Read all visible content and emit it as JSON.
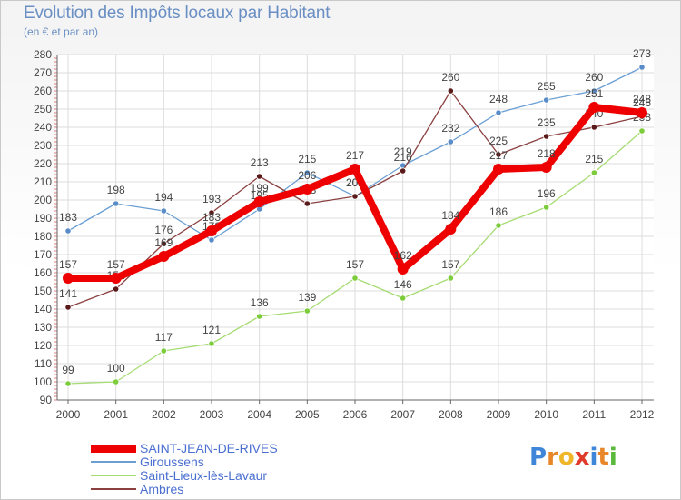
{
  "chart_data": {
    "type": "line",
    "title": "Evolution des Impôts locaux par Habitant",
    "subtitle": "(en € et par an)",
    "xlabel": "",
    "ylabel": "",
    "ylim": [
      90,
      280
    ],
    "ytick_step": 10,
    "categories": [
      "2000",
      "2001",
      "2002",
      "2003",
      "2004",
      "2005",
      "2006",
      "2007",
      "2008",
      "2009",
      "2010",
      "2011",
      "2012"
    ],
    "series": [
      {
        "name": "Giroussens",
        "color": "#6a9fd4",
        "marker": "#5a8cc8",
        "width": 1.3,
        "values": [
          183,
          198,
          194,
          178,
          195,
          215,
          202,
          219,
          232,
          248,
          255,
          260,
          273
        ]
      },
      {
        "name": "Saint-Lieux-lès-Lavaur",
        "color": "#a6dc72",
        "marker": "#7ccc3c",
        "width": 1.3,
        "values": [
          99,
          100,
          117,
          121,
          136,
          139,
          157,
          146,
          157,
          186,
          196,
          215,
          238
        ]
      },
      {
        "name": "Ambres",
        "color": "#8b4040",
        "marker": "#5a1a1a",
        "width": 1.3,
        "values": [
          141,
          151,
          176,
          193,
          213,
          198,
          202,
          216,
          260,
          225,
          235,
          240,
          246
        ]
      },
      {
        "name": "SAINT-JEAN-DE-RIVES",
        "color": "#ee0000",
        "marker": "#ee0000",
        "width": 8,
        "values": [
          157,
          157,
          169,
          183,
          199,
          206,
          217,
          162,
          184,
          217,
          218,
          251,
          248
        ]
      }
    ],
    "legend_order": [
      "SAINT-JEAN-DE-RIVES",
      "Giroussens",
      "Saint-Lieux-lès-Lavaur",
      "Ambres"
    ],
    "legend_position": "bottom-left",
    "grid": true
  },
  "logo": {
    "letters": [
      "P",
      "r",
      "o",
      "x",
      "i",
      "t",
      "i"
    ],
    "colors": [
      "#3f86d8",
      "#e8862a",
      "#f0b62a",
      "#e03a2a",
      "#3f86d8",
      "#e8862a",
      "#5ab83a"
    ]
  }
}
